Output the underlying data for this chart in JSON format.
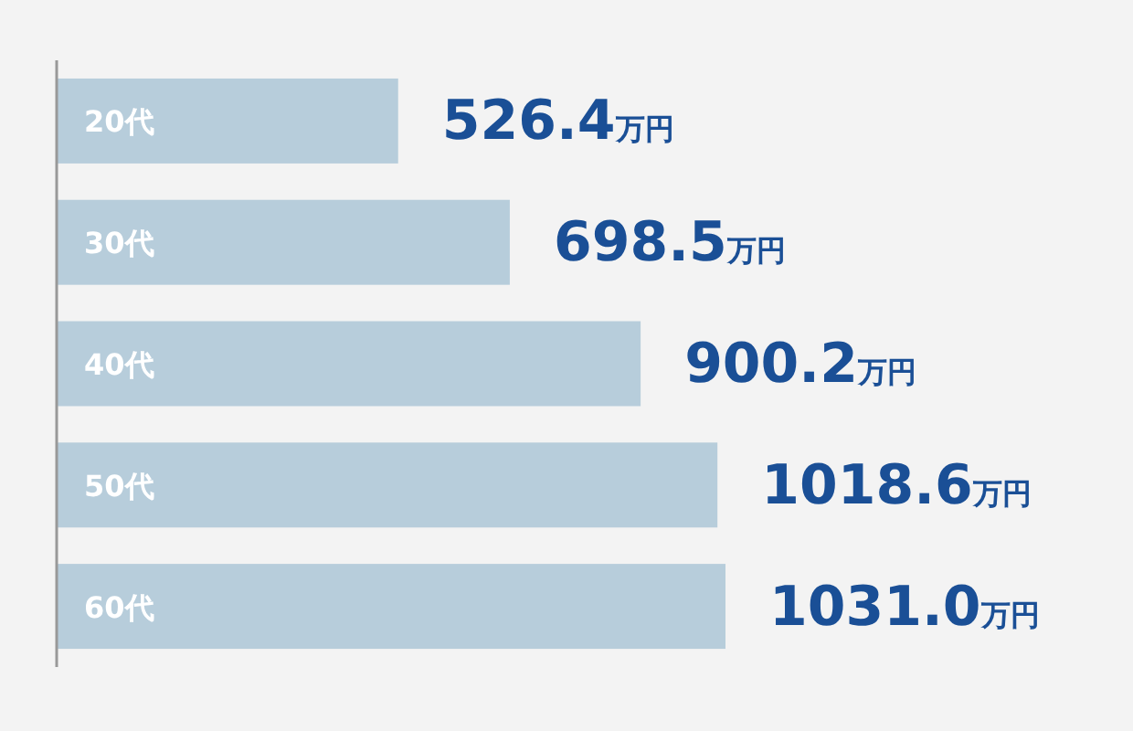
{
  "chart_data": {
    "type": "bar",
    "orientation": "horizontal",
    "categories": [
      "20代",
      "30代",
      "40代",
      "50代",
      "60代"
    ],
    "values": [
      526.4,
      698.5,
      900.2,
      1018.6,
      1031.0
    ],
    "color": "#b7cddb",
    "value_labels": [
      "526.4万円",
      "698.5万円",
      "900.2万円",
      "1018.6万円",
      "1031.0万円"
    ]
  }
}
